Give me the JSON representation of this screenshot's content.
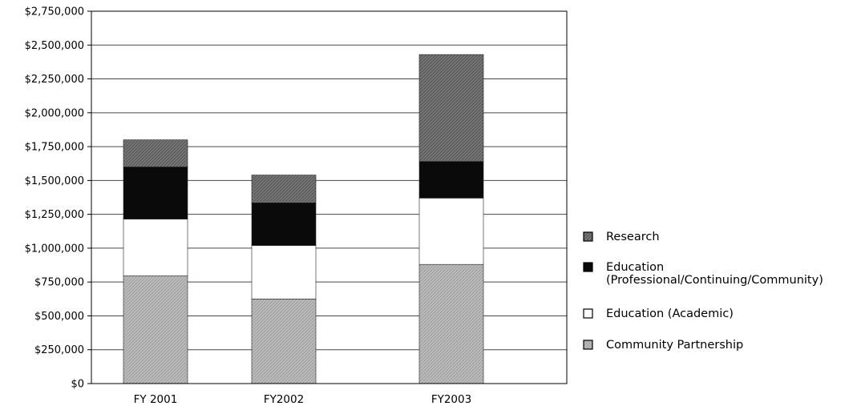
{
  "chart_data": {
    "type": "bar",
    "stacked": true,
    "categories": [
      "FY 2001",
      "FY2002",
      "FY2003"
    ],
    "series": [
      {
        "name": "Community Partnership",
        "values": [
          795000,
          625000,
          880000
        ],
        "fill": "#b4b4b4"
      },
      {
        "name": "Education (Academic)",
        "values": [
          420000,
          395000,
          490000
        ],
        "fill": "#ffffff"
      },
      {
        "name": "Education (Professional/Continuing/Community)",
        "values": [
          385000,
          315000,
          270000
        ],
        "fill": "#0a0a0a"
      },
      {
        "name": "Research",
        "values": [
          200000,
          205000,
          790000
        ],
        "fill": "#707070"
      }
    ],
    "yticks": [
      "$0",
      "$250,000",
      "$500,000",
      "$750,000",
      "$1,000,000",
      "$1,250,000",
      "$1,500,000",
      "$1,750,000",
      "$2,000,000",
      "$2,250,000",
      "$2,500,000",
      "$2,750,000"
    ],
    "ylim": [
      0,
      2750000
    ],
    "ytick_step": 250000,
    "grid": true,
    "legend_position": "right",
    "legend_order": [
      "Research",
      "Education (Professional/Continuing/Community)",
      "Education (Academic)",
      "Community Partnership"
    ],
    "legend_lines": {
      "Research": [
        "Research"
      ],
      "Education (Professional/Continuing/Community)": [
        "Education",
        "(Professional/Continuing/Community)"
      ],
      "Education (Academic)": [
        "Education (Academic)"
      ],
      "Community Partnership": [
        "Community Partnership"
      ]
    }
  }
}
